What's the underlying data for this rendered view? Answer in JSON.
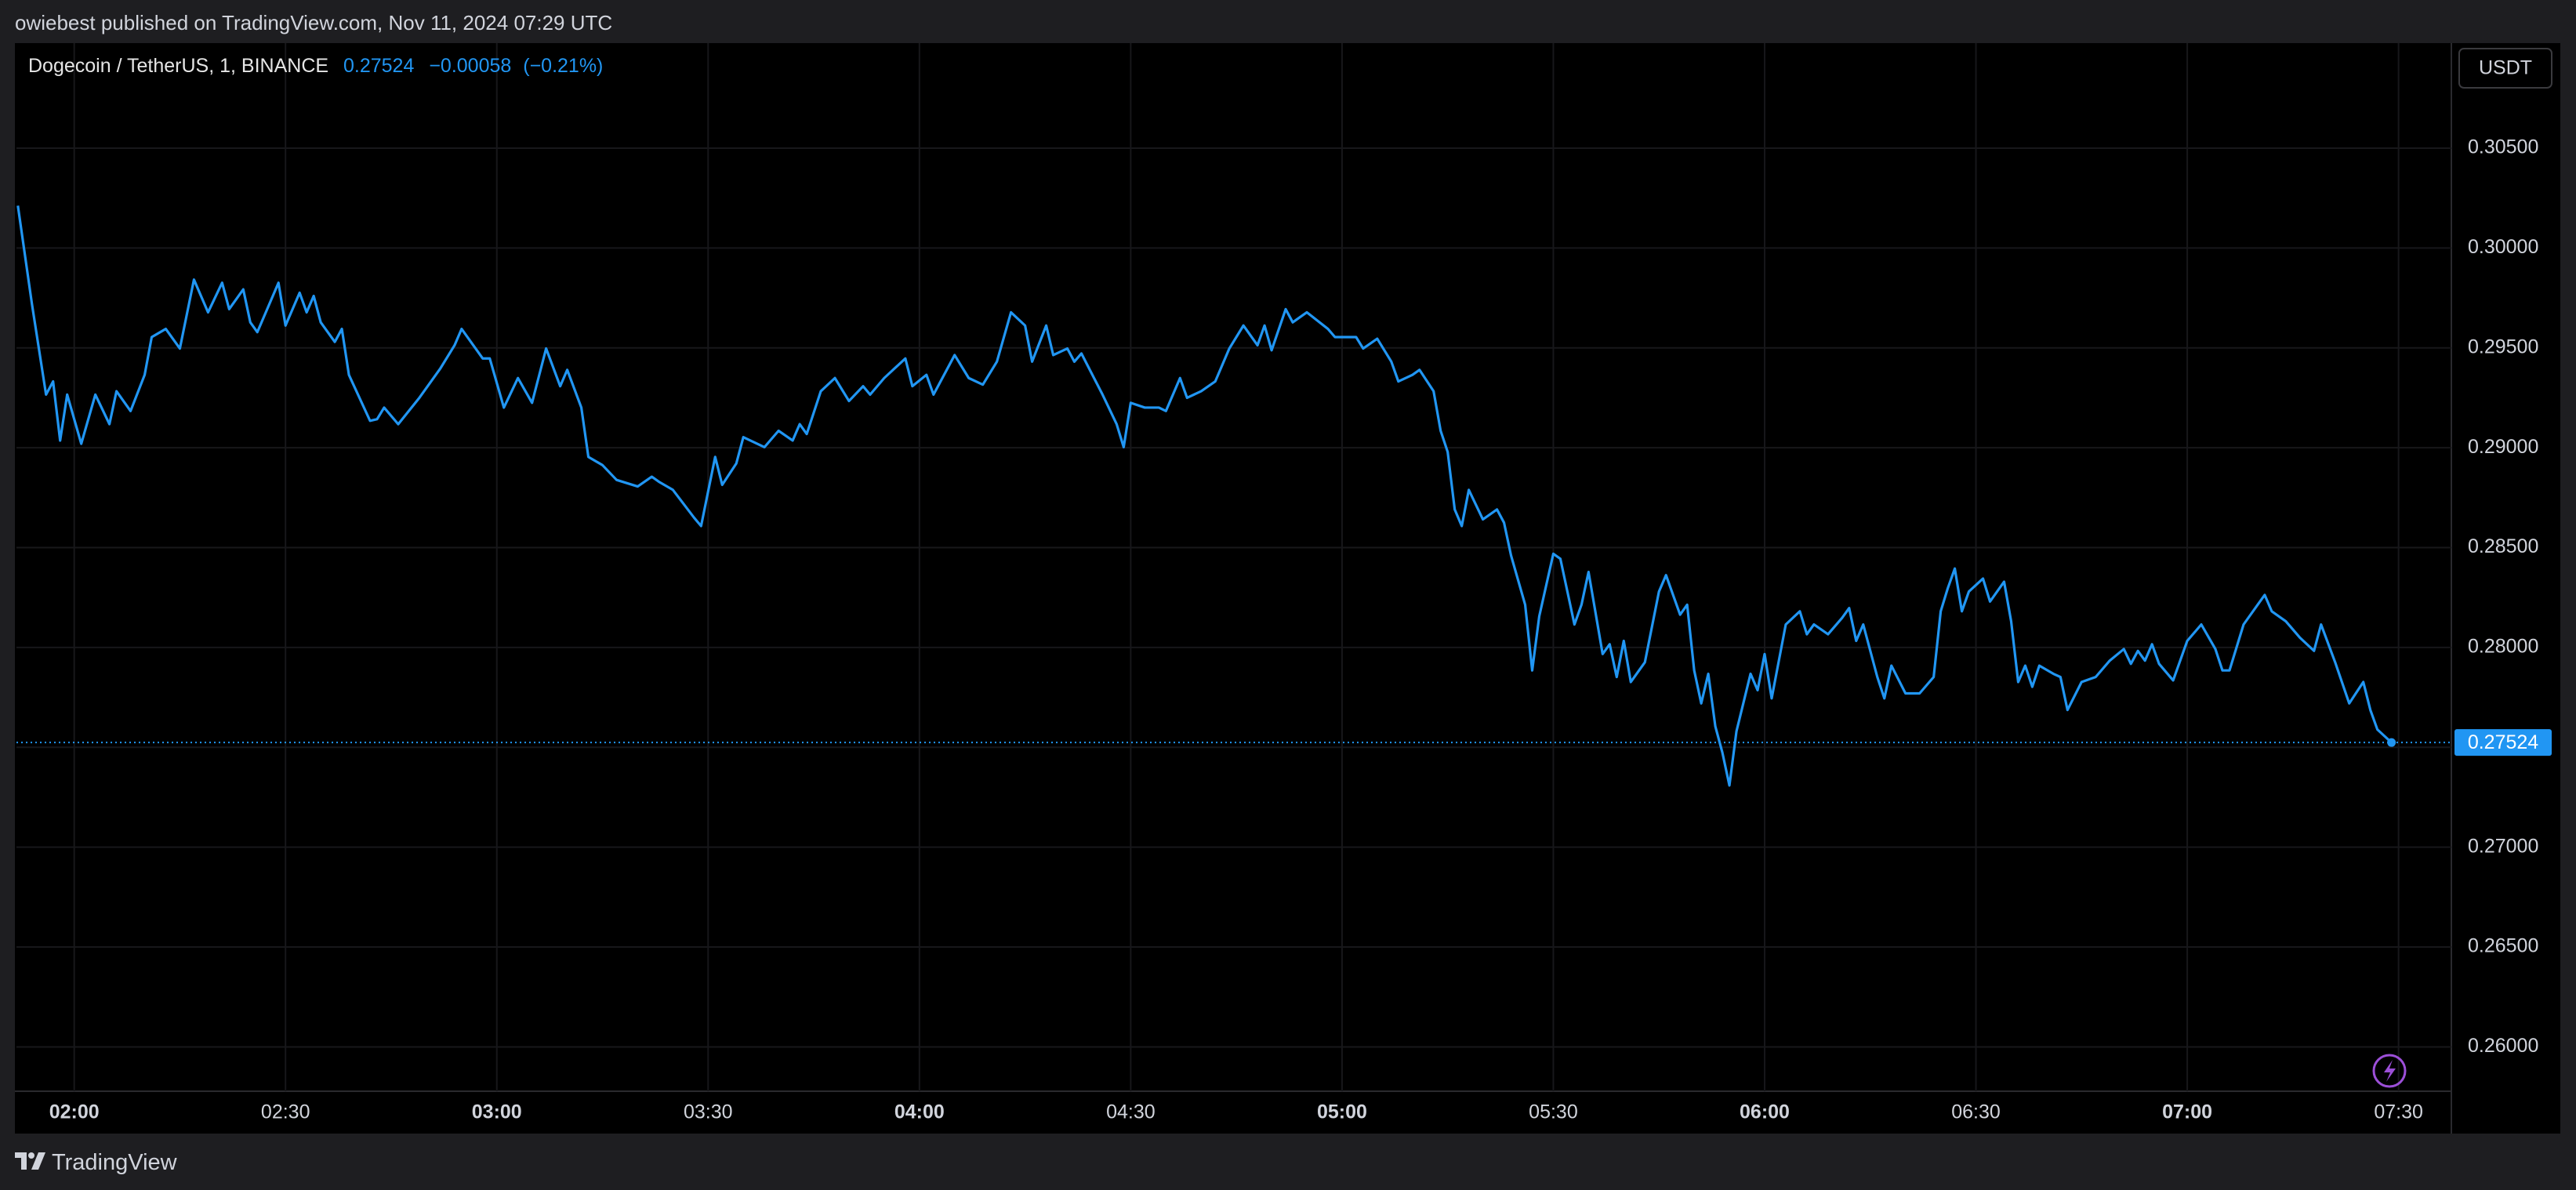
{
  "header": {
    "text": "owiebest published on TradingView.com, Nov 11, 2024 07:29 UTC"
  },
  "chart_data": {
    "type": "line",
    "symbol": "Dogecoin / TetherUS, 1, BINANCE",
    "last_price": 0.27524,
    "change": "−0.00058",
    "change_percent": "(−0.21%)",
    "currency": "USDT",
    "color": "#2196f3",
    "grid": true,
    "xlim": [
      111.8,
      457.5
    ],
    "xticks": [
      {
        "value": 120,
        "label": "02:00"
      },
      {
        "value": 150,
        "label": "02:30"
      },
      {
        "value": 180,
        "label": "03:00"
      },
      {
        "value": 210,
        "label": "03:30"
      },
      {
        "value": 240,
        "label": "04:00"
      },
      {
        "value": 270,
        "label": "04:30"
      },
      {
        "value": 300,
        "label": "05:00"
      },
      {
        "value": 330,
        "label": "05:30"
      },
      {
        "value": 360,
        "label": "06:00"
      },
      {
        "value": 390,
        "label": "06:30"
      },
      {
        "value": 420,
        "label": "07:00"
      },
      {
        "value": 450,
        "label": "07:30"
      }
    ],
    "ylim": [
      0.25778,
      0.31026
    ],
    "yticks": [
      {
        "value": 0.26,
        "label": "0.26000"
      },
      {
        "value": 0.265,
        "label": "0.26500"
      },
      {
        "value": 0.27,
        "label": "0.27000"
      },
      {
        "value": 0.275,
        "label": "0.27500"
      },
      {
        "value": 0.28,
        "label": "0.28000"
      },
      {
        "value": 0.285,
        "label": "0.28500"
      },
      {
        "value": 0.29,
        "label": "0.29000"
      },
      {
        "value": 0.295,
        "label": "0.29500"
      },
      {
        "value": 0.3,
        "label": "0.30000"
      },
      {
        "value": 0.305,
        "label": "0.30500"
      }
    ],
    "x": [
      112,
      114,
      116,
      117,
      118,
      119,
      121,
      123,
      125,
      126,
      128,
      130,
      131,
      133,
      135,
      137,
      139,
      141,
      142,
      144,
      145,
      146,
      149,
      150,
      152,
      153,
      154,
      155,
      157,
      158,
      159,
      162,
      163,
      164,
      166,
      169,
      172,
      174,
      175,
      178,
      179,
      181,
      183,
      185,
      187,
      189,
      190,
      192,
      193,
      195,
      197,
      200,
      202,
      203,
      205,
      208,
      209,
      211,
      212,
      214,
      215,
      218,
      220,
      222,
      223,
      224,
      226,
      228,
      230,
      232,
      233,
      235,
      238,
      239,
      241,
      242,
      245,
      247,
      249,
      251,
      253,
      255,
      256,
      258,
      259,
      261,
      262,
      263,
      266,
      268,
      269,
      270,
      272,
      274,
      275,
      277,
      278,
      280,
      282,
      284,
      286,
      288,
      289,
      290,
      292,
      293,
      295,
      298,
      299,
      302,
      303,
      305,
      307,
      308,
      310,
      311,
      313,
      314,
      315,
      316,
      317,
      318,
      320,
      322,
      323,
      324,
      326,
      327,
      328,
      330,
      331,
      333,
      334,
      335,
      337,
      338,
      339,
      340,
      341,
      343,
      345,
      346,
      348,
      349,
      350,
      351,
      352,
      353,
      354,
      355,
      356,
      358,
      359,
      360,
      361,
      363,
      365,
      366,
      367,
      369,
      371,
      372,
      373,
      374,
      376,
      377,
      378,
      380,
      382,
      384,
      385,
      386,
      387,
      388,
      389,
      391,
      392,
      394,
      395,
      396,
      397,
      398,
      399,
      401,
      402,
      403,
      405,
      407,
      409,
      411,
      412,
      413,
      414,
      415,
      416,
      418,
      420,
      422,
      424,
      425,
      426,
      428,
      430,
      431,
      432,
      434,
      436,
      438,
      439,
      441,
      443,
      445,
      446,
      447,
      449
    ],
    "values": [
      0.30212,
      0.29719,
      0.29266,
      0.29332,
      0.29036,
      0.29266,
      0.2902,
      0.29266,
      0.29118,
      0.29283,
      0.29184,
      0.29365,
      0.29554,
      0.29595,
      0.29497,
      0.29842,
      0.29678,
      0.29826,
      0.29694,
      0.29793,
      0.29628,
      0.29579,
      0.29826,
      0.29612,
      0.29776,
      0.29678,
      0.2976,
      0.29628,
      0.2953,
      0.29595,
      0.29365,
      0.29135,
      0.29143,
      0.29201,
      0.29118,
      0.2925,
      0.29398,
      0.29513,
      0.29595,
      0.29447,
      0.29447,
      0.29201,
      0.29349,
      0.29225,
      0.29497,
      0.29308,
      0.2939,
      0.29201,
      0.28954,
      0.28913,
      0.28839,
      0.28806,
      0.28855,
      0.2883,
      0.28789,
      0.2865,
      0.28608,
      0.28954,
      0.28814,
      0.28921,
      0.29053,
      0.29003,
      0.29085,
      0.29036,
      0.29118,
      0.29069,
      0.29283,
      0.29349,
      0.29234,
      0.29308,
      0.29266,
      0.29349,
      0.29447,
      0.29308,
      0.29365,
      0.29266,
      0.29464,
      0.29349,
      0.29316,
      0.29431,
      0.29678,
      0.29612,
      0.29431,
      0.29612,
      0.29464,
      0.29497,
      0.29431,
      0.29472,
      0.29266,
      0.29118,
      0.29003,
      0.29225,
      0.29201,
      0.29201,
      0.29184,
      0.29349,
      0.2925,
      0.29283,
      0.29332,
      0.29497,
      0.29612,
      0.29513,
      0.29612,
      0.29488,
      0.29694,
      0.29628,
      0.29678,
      0.29595,
      0.29554,
      0.29554,
      0.29497,
      0.29546,
      0.29431,
      0.29332,
      0.29365,
      0.2939,
      0.29283,
      0.29085,
      0.28979,
      0.28691,
      0.28608,
      0.28789,
      0.28641,
      0.28691,
      0.28625,
      0.2846,
      0.28214,
      0.27885,
      0.28156,
      0.28469,
      0.28444,
      0.28115,
      0.28214,
      0.28378,
      0.27967,
      0.28016,
      0.27852,
      0.28033,
      0.27827,
      0.27926,
      0.2828,
      0.28362,
      0.28164,
      0.28214,
      0.27885,
      0.2772,
      0.27868,
      0.27605,
      0.27474,
      0.27309,
      0.2758,
      0.27868,
      0.27786,
      0.27967,
      0.27745,
      0.28115,
      0.28181,
      0.28066,
      0.28115,
      0.28066,
      0.28148,
      0.28197,
      0.28033,
      0.28115,
      0.27852,
      0.27745,
      0.27909,
      0.2777,
      0.2777,
      0.27852,
      0.28181,
      0.28296,
      0.28395,
      0.28181,
      0.2828,
      0.28345,
      0.2823,
      0.28329,
      0.28131,
      0.27827,
      0.27909,
      0.27803,
      0.27909,
      0.27868,
      0.27852,
      0.27687,
      0.27827,
      0.27852,
      0.27934,
      0.27992,
      0.27918,
      0.27983,
      0.27934,
      0.28016,
      0.27918,
      0.27835,
      0.28033,
      0.28115,
      0.27992,
      0.27885,
      0.27885,
      0.28115,
      0.28214,
      0.28263,
      0.28181,
      0.28131,
      0.28049,
      0.27983,
      0.28115,
      0.27926,
      0.2772,
      0.27827,
      0.27687,
      0.27589,
      0.27524
    ]
  },
  "footer": {
    "brand": "TradingView"
  }
}
